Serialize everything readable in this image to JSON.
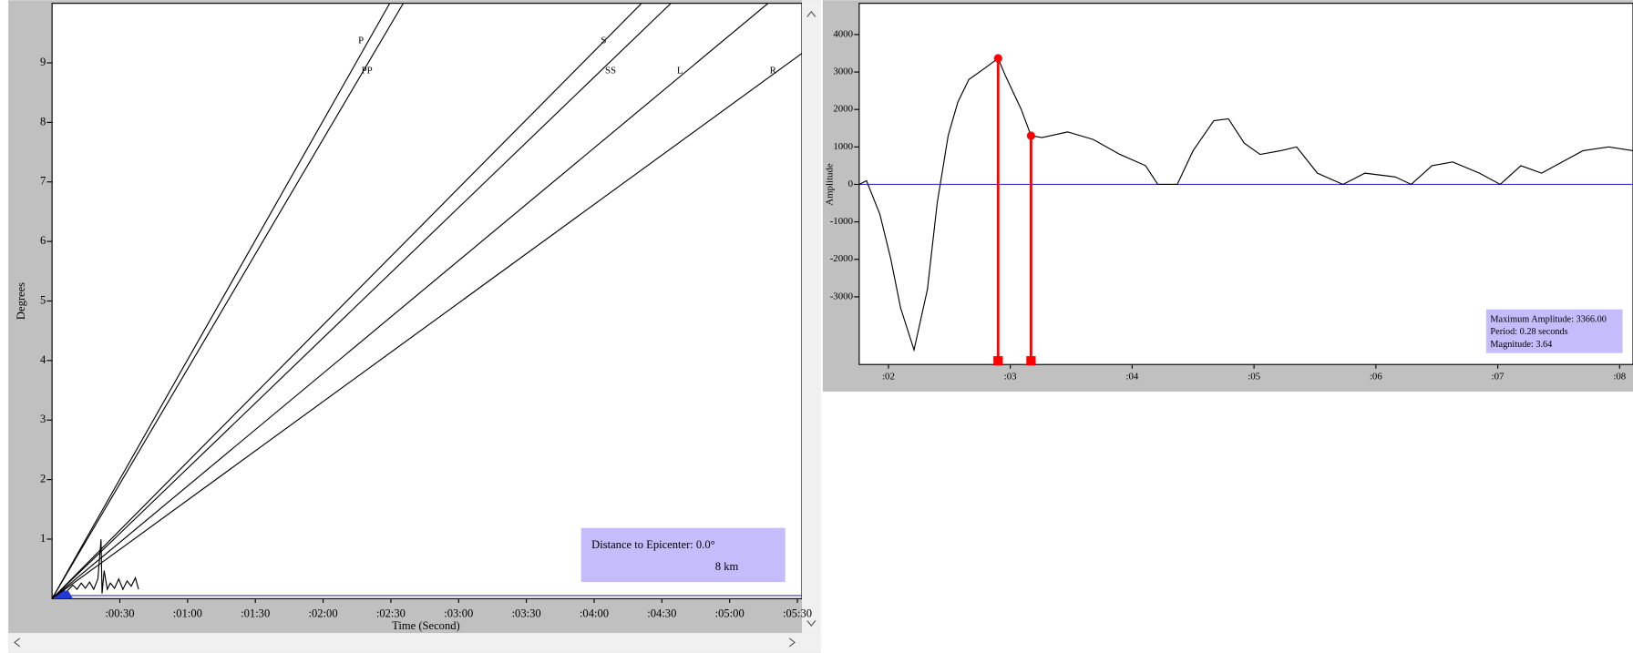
{
  "chart_data": [
    {
      "type": "line",
      "xlabel": "Time  (Second)",
      "ylabel": "Degrees",
      "xlim": [
        0,
        332
      ],
      "ylim": [
        0,
        10
      ],
      "xticks": [
        {
          "value": 30,
          "label": ":00:30"
        },
        {
          "value": 60,
          "label": ":01:00"
        },
        {
          "value": 90,
          "label": ":01:30"
        },
        {
          "value": 120,
          "label": ":02:00"
        },
        {
          "value": 150,
          "label": ":02:30"
        },
        {
          "value": 180,
          "label": ":03:00"
        },
        {
          "value": 210,
          "label": ":03:30"
        },
        {
          "value": 240,
          "label": ":04:00"
        },
        {
          "value": 270,
          "label": ":04:30"
        },
        {
          "value": 300,
          "label": ":05:00"
        },
        {
          "value": 330,
          "label": ":05:30"
        }
      ],
      "yticks": [
        1,
        2,
        3,
        4,
        5,
        6,
        7,
        8,
        9
      ],
      "zero_line_color": "#3333cc",
      "series": [
        {
          "name": "P",
          "color": "#000000",
          "x": [
            0,
            149.5
          ],
          "values": [
            0,
            10
          ]
        },
        {
          "name": "PP",
          "color": "#000000",
          "x": [
            0,
            155.5
          ],
          "values": [
            0,
            10
          ]
        },
        {
          "name": "S",
          "color": "#000000",
          "x": [
            0,
            261
          ],
          "values": [
            0,
            10
          ]
        },
        {
          "name": "SS",
          "color": "#000000",
          "x": [
            0,
            274
          ],
          "values": [
            0,
            10
          ]
        },
        {
          "name": "L",
          "color": "#000000",
          "x": [
            0,
            317
          ],
          "values": [
            0,
            10
          ]
        },
        {
          "name": "R",
          "color": "#000000",
          "x": [
            0,
            332
          ],
          "values": [
            0,
            9.16
          ]
        }
      ],
      "annotations": [
        "Distance to Epicenter: 0.0°",
        "8 km"
      ]
    },
    {
      "type": "line",
      "ylabel": "Amplitude",
      "xlim": [
        0.0176,
        0.0811
      ],
      "ylim": [
        -4806,
        4833
      ],
      "xticks": [
        {
          "value": 0.02,
          "label": ":02"
        },
        {
          "value": 0.03,
          "label": ":03"
        },
        {
          "value": 0.04,
          "label": ":04"
        },
        {
          "value": 0.05,
          "label": ":05"
        },
        {
          "value": 0.06,
          "label": ":06"
        },
        {
          "value": 0.07,
          "label": ":07"
        },
        {
          "value": 0.08,
          "label": ":08"
        }
      ],
      "yticks": [
        -3000,
        -2000,
        -1000,
        0,
        1000,
        2000,
        3000,
        4000
      ],
      "zero_line_color": "#3333cc",
      "series": [
        {
          "color": "#000000",
          "x": [
            0.0176,
            0.0182,
            0.0193,
            0.0202,
            0.021,
            0.0221,
            0.0232,
            0.024,
            0.0249,
            0.0257,
            0.0266,
            0.0279,
            0.029,
            0.0296,
            0.0309,
            0.0317,
            0.0326,
            0.0347,
            0.0368,
            0.039,
            0.0411,
            0.0421,
            0.0437,
            0.045,
            0.0467,
            0.0479,
            0.0492,
            0.0505,
            0.0522,
            0.0535,
            0.0552,
            0.0573,
            0.0591,
            0.0616,
            0.0629,
            0.0646,
            0.0663,
            0.0685,
            0.0702,
            0.0719,
            0.0736,
            0.0753,
            0.077,
            0.0791,
            0.0811
          ],
          "values": [
            0,
            100,
            -800,
            -2000,
            -3300,
            -4417,
            -2800,
            -500,
            1300,
            2200,
            2800,
            3100,
            3366,
            2900,
            2000,
            1300,
            1250,
            1400,
            1200,
            800,
            500,
            0,
            0,
            900,
            1700,
            1750,
            1100,
            800,
            900,
            1000,
            300,
            0,
            300,
            200,
            0,
            500,
            600,
            300,
            0,
            500,
            300,
            600,
            900,
            1000,
            900
          ]
        }
      ],
      "markers": {
        "color": "#ff0000",
        "x": [
          0.029,
          0.0317
        ],
        "values": [
          3366,
          1300
        ]
      },
      "annotations": [
        "Maximum Amplitude: 3366.00",
        "Period: 0.28 seconds",
        "Magnitude: 3.64"
      ]
    }
  ]
}
